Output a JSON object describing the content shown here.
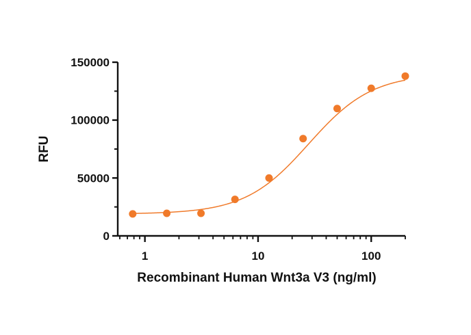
{
  "chart_data": {
    "type": "scatter",
    "title": "",
    "xlabel": "Recombinant Human Wnt3a V3  (ng/ml)",
    "ylabel": "RFU",
    "x_scale": "log",
    "xlim": [
      0.6,
      200
    ],
    "ylim": [
      0,
      150000
    ],
    "x_ticks": [
      1,
      10,
      100
    ],
    "x_tick_labels": [
      "1",
      "10",
      "100"
    ],
    "y_ticks": [
      0,
      50000,
      100000,
      150000
    ],
    "y_tick_labels": [
      "0",
      "50000",
      "100000",
      "150000"
    ],
    "grid": false,
    "legend": "none",
    "series": [
      {
        "x": [
          0.78,
          1.56,
          3.13,
          6.25,
          12.5,
          25,
          50,
          100,
          200
        ],
        "y": [
          19000,
          19500,
          19500,
          31500,
          50000,
          84000,
          110000,
          127500,
          138000
        ],
        "fit": "four-parameter logistic"
      }
    ],
    "colors": {
      "marker": "#f07a2a",
      "curve": "#f07a2a",
      "axis": "#111111"
    }
  }
}
